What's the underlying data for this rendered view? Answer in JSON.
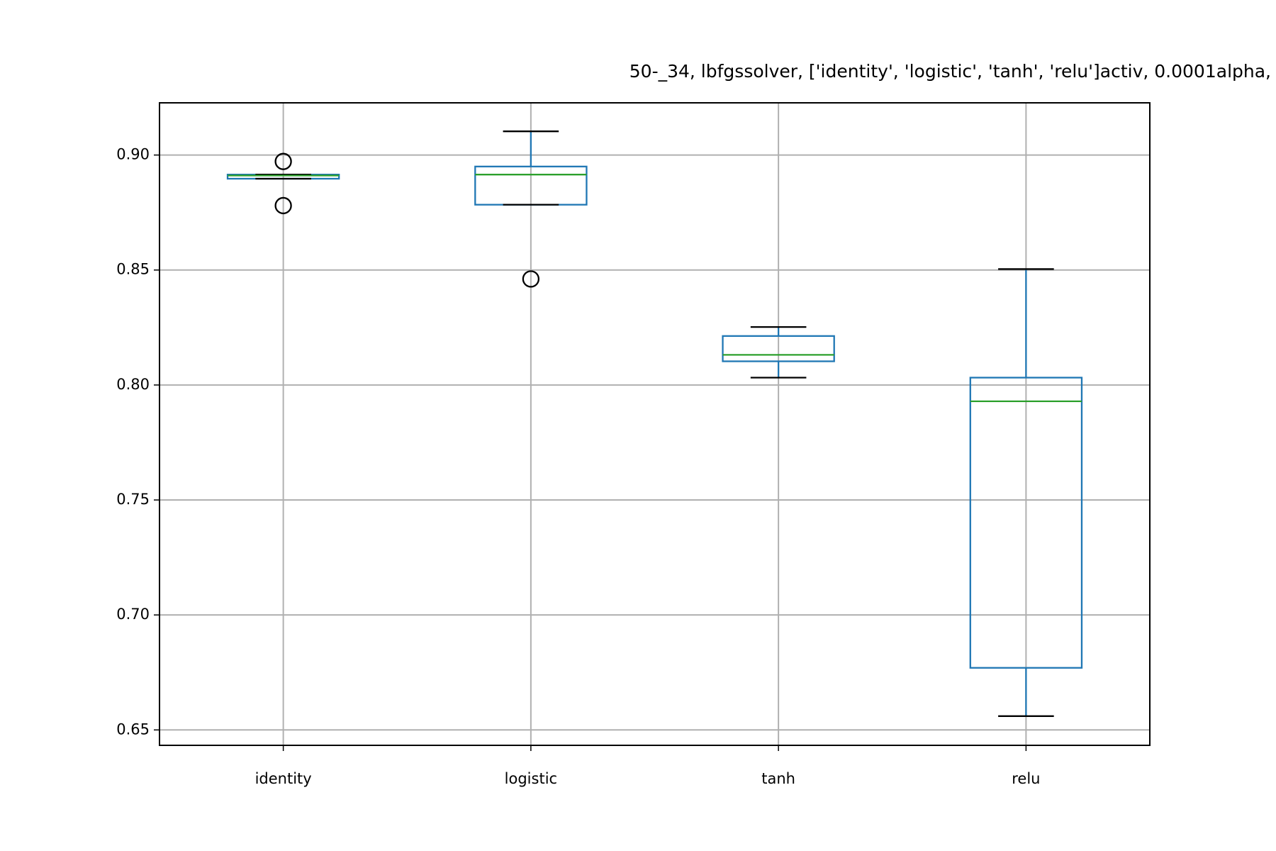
{
  "chart_data": {
    "type": "box",
    "title": "50-_34, lbfgssolver, ['identity', 'logistic', 'tanh', 'relu']activ, 0.0001alpha,",
    "categories": [
      "identity",
      "logistic",
      "tanh",
      "relu"
    ],
    "boxes": [
      {
        "whislo": 0.8897,
        "q1": 0.8897,
        "median": 0.8911,
        "q3": 0.8915,
        "whishi": 0.8915,
        "fliers": [
          0.8972,
          0.878
        ]
      },
      {
        "whislo": 0.8784,
        "q1": 0.8784,
        "median": 0.8915,
        "q3": 0.895,
        "whishi": 0.9103,
        "fliers": [
          0.8461
        ]
      },
      {
        "whislo": 0.8032,
        "q1": 0.8103,
        "median": 0.8131,
        "q3": 0.8213,
        "whishi": 0.8252,
        "fliers": []
      },
      {
        "whislo": 0.656,
        "q1": 0.677,
        "median": 0.7929,
        "q3": 0.8032,
        "whishi": 0.8504,
        "fliers": []
      }
    ],
    "box_color": "#1f77b4",
    "median_color": "#2ca02c",
    "whisker_cap_color": "#000000",
    "ylim": [
      0.6433,
      0.9227
    ],
    "yticks": [
      0.65,
      {
        "value": 0.7,
        "label": "0.70"
      },
      0.75,
      {
        "value": 0.8,
        "label": "0.80"
      },
      0.85,
      {
        "value": 0.9,
        "label": "0.90"
      }
    ],
    "grid": true
  }
}
